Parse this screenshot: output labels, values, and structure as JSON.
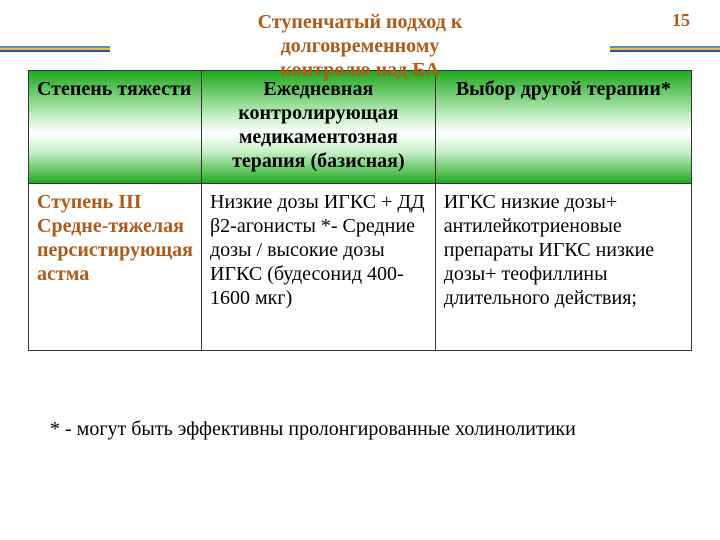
{
  "page_number": "15",
  "title_line1": "Ступенчатый подход к",
  "title_line2": "долговременному",
  "title_line3": "контролю над  БА",
  "colors": {
    "accent_text": "#b05a18",
    "gradient_dark": "#1fa81f",
    "gradient_light": "#c6f0c6",
    "border": "#333333",
    "bar_blue_light": "#5a8fc2",
    "bar_yellow": "#e8b85a",
    "bar_blue_dark": "#2d5a8a"
  },
  "table": {
    "header": {
      "severity": "Степень тяжести",
      "daily": "Ежедневная контролирующая медикаментозная терапия (базисная)",
      "other": "Выбор другой терапии*"
    },
    "row1": {
      "severity": "Ступень III Средне-тяжелая персистирующая астма",
      "daily": "Низкие дозы ИГКС + ДД β2-агонисты *- Средние дозы / высокие дозы ИГКС (будесонид 400-1600 мкг)",
      "other": "ИГКС низкие дозы+ антилейкотриеновые препараты\nИГКС низкие дозы+ теофиллины длительного действия;"
    }
  },
  "footnote": "* - могут быть эффективны пролонгированные холинолитики"
}
